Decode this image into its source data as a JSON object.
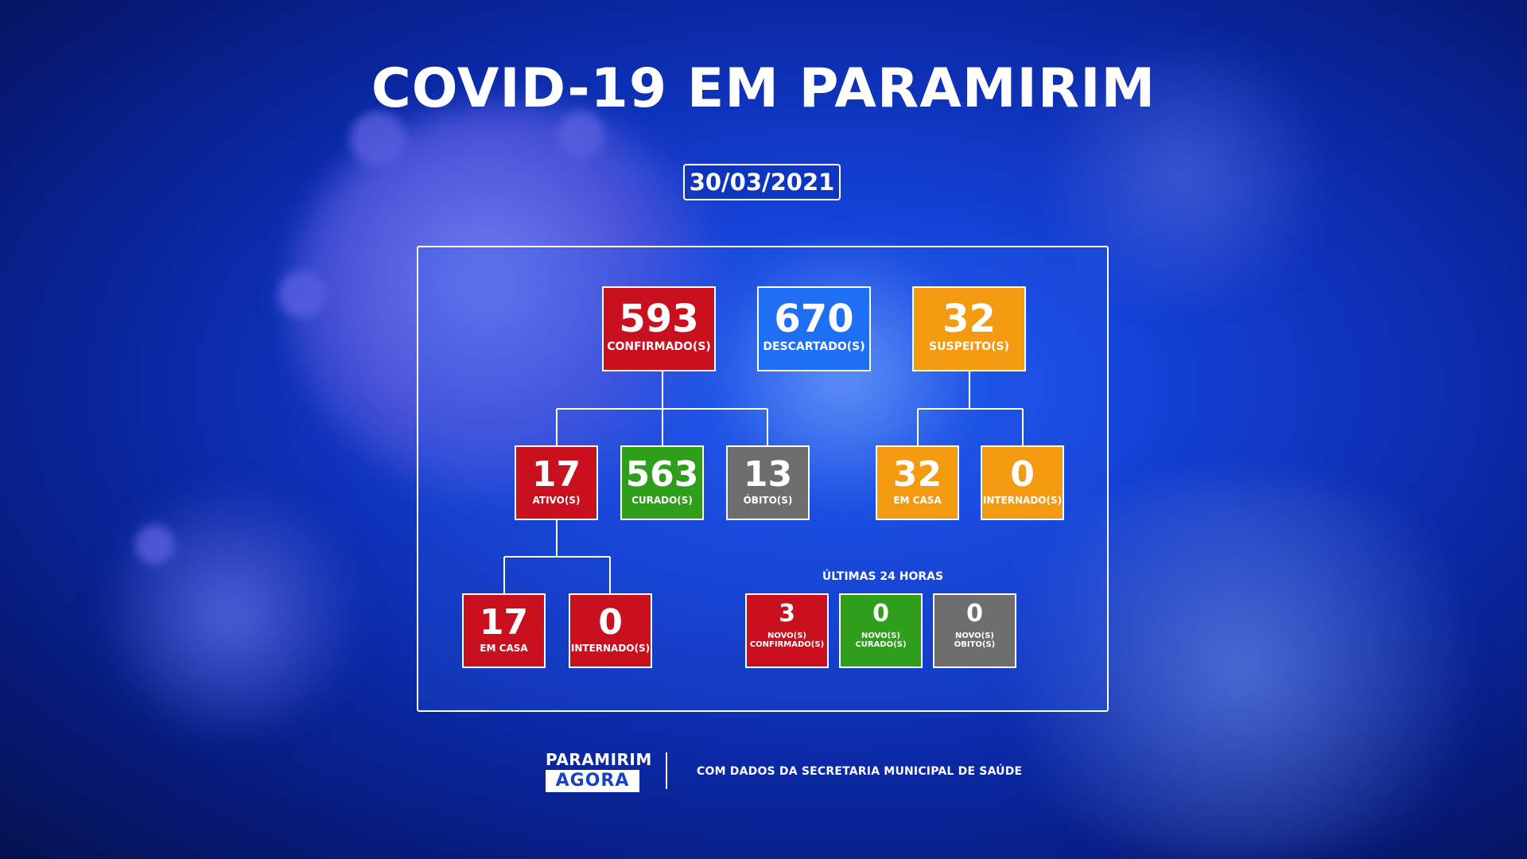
{
  "title": "COVID-19 EM PARAMIRIM",
  "date": "30/03/2021",
  "top_row": {
    "confirmed": {
      "value": "593",
      "label": "CONFIRMADO(S)"
    },
    "discarded": {
      "value": "670",
      "label": "DESCARTADO(S)"
    },
    "suspected": {
      "value": "32",
      "label": "SUSPEITO(S)"
    }
  },
  "confirmed_breakdown": {
    "active": {
      "value": "17",
      "label": "ATIVO(S)"
    },
    "cured": {
      "value": "563",
      "label": "CURADO(S)"
    },
    "deaths": {
      "value": "13",
      "label": "ÓBITO(S)"
    }
  },
  "active_breakdown": {
    "home": {
      "value": "17",
      "label": "EM CASA"
    },
    "hospitalized": {
      "value": "0",
      "label": "INTERNADO(S)"
    }
  },
  "suspected_breakdown": {
    "home": {
      "value": "32",
      "label": "EM CASA"
    },
    "hospitalized": {
      "value": "0",
      "label": "INTERNADO(S)"
    }
  },
  "last24": {
    "heading": "ÚLTIMAS 24 HORAS",
    "new_confirmed": {
      "value": "3",
      "label_line1": "NOVO(S)",
      "label_line2": "CONFIRMADO(S)"
    },
    "new_cured": {
      "value": "0",
      "label_line1": "NOVO(S)",
      "label_line2": "CURADO(S)"
    },
    "new_deaths": {
      "value": "0",
      "label_line1": "NOVO(S)",
      "label_line2": "ÓBITO(S)"
    }
  },
  "footer": {
    "logo_top": "PARAMIRIM",
    "logo_bottom": "AGORA",
    "source": "COM DADOS DA SECRETARIA MUNICIPAL DE SAÚDE"
  },
  "colors": {
    "red": "#c8101f",
    "green": "#2f9e1a",
    "gray": "#6e6e6e",
    "orange": "#f39a10",
    "blue": "#1f6ff5"
  }
}
